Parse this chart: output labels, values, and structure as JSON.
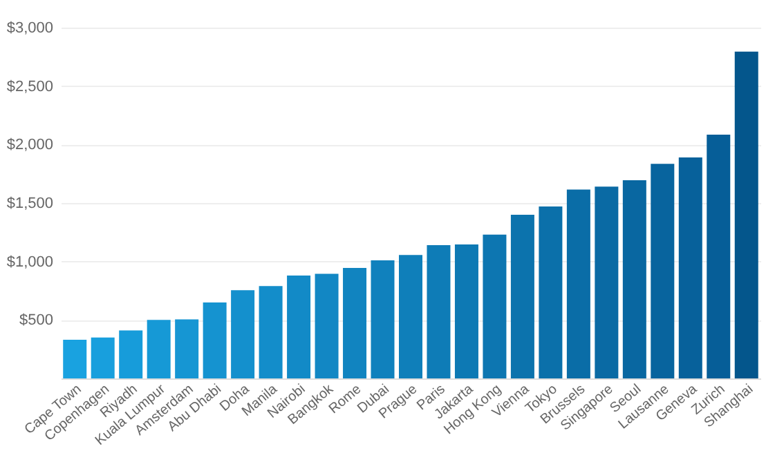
{
  "chart_data": {
    "type": "bar",
    "categories": [
      "Cape Town",
      "Copenhagen",
      "Riyadh",
      "Kuala Lumpur",
      "Amsterdam",
      "Abu Dhabi",
      "Doha",
      "Manila",
      "Nairobi",
      "Bangkok",
      "Rome",
      "Dubai",
      "Prague",
      "Paris",
      "Jakarta",
      "Hong Kong",
      "Vienna",
      "Tokyo",
      "Brussels",
      "Singapore",
      "Seoul",
      "Lausanne",
      "Geneva",
      "Zurich",
      "Shanghai"
    ],
    "values": [
      330,
      350,
      410,
      500,
      505,
      650,
      755,
      790,
      880,
      895,
      945,
      1010,
      1055,
      1140,
      1145,
      1230,
      1400,
      1470,
      1615,
      1640,
      1695,
      1835,
      1890,
      2085,
      2795
    ],
    "colors": [
      "#19a2e0",
      "#189fdd",
      "#179cda",
      "#1699d6",
      "#1696d3",
      "#1593d0",
      "#1490cd",
      "#138dca",
      "#128ac7",
      "#1287c4",
      "#1184c0",
      "#1081bd",
      "#0f7fba",
      "#0e7cb7",
      "#0d79b4",
      "#0d76b1",
      "#0c73ad",
      "#0b70aa",
      "#0a6da7",
      "#0a6aa4",
      "#0967a1",
      "#08649e",
      "#07619b",
      "#065e98",
      "#04568c"
    ],
    "ylim": [
      0,
      3000
    ],
    "yticks": [
      {
        "value": 500,
        "label": "$500"
      },
      {
        "value": 1000,
        "label": "$1,000"
      },
      {
        "value": 1500,
        "label": "$1,500"
      },
      {
        "value": 2000,
        "label": "$2,000"
      },
      {
        "value": 2500,
        "label": "$2,500"
      },
      {
        "value": 3000,
        "label": "$3,000"
      }
    ],
    "grid": "y"
  }
}
